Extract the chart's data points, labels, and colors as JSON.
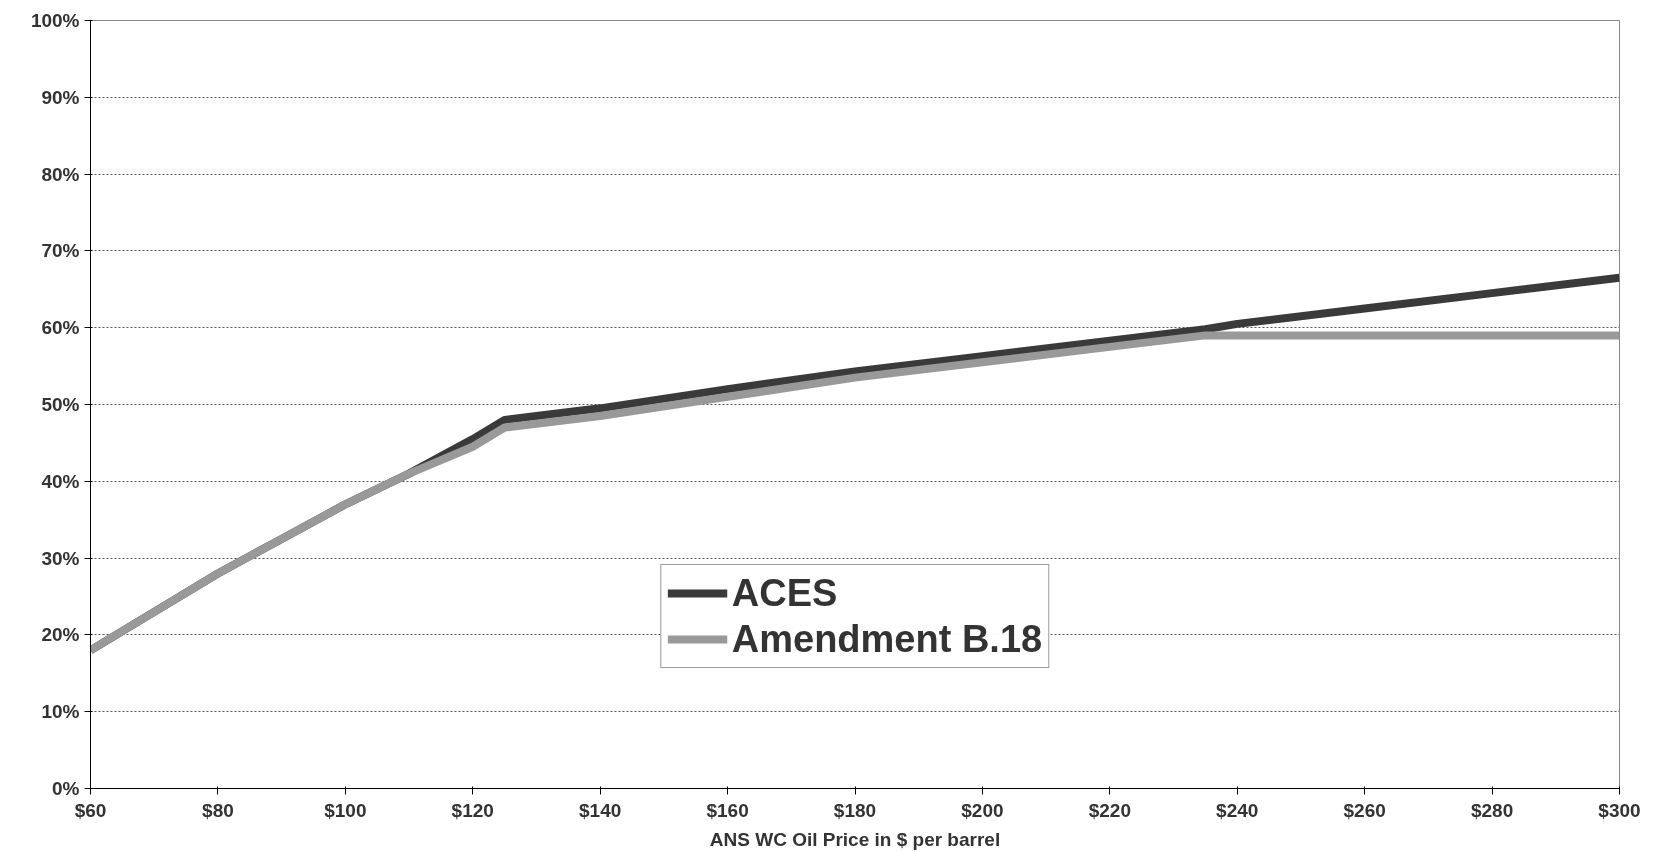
{
  "chart_data": {
    "type": "line",
    "xlabel": "ANS WC Oil Price in $ per barrel",
    "x": [
      60,
      70,
      80,
      90,
      100,
      110,
      120,
      125,
      130,
      140,
      160,
      180,
      200,
      220,
      235,
      240,
      260,
      280,
      300
    ],
    "series": [
      {
        "name": "ACES",
        "color": "#3a3a3a",
        "values": [
          18,
          23,
          28,
          32.5,
          37,
          41,
          45.5,
          48,
          48.5,
          49.5,
          52,
          54.3,
          56.3,
          58.3,
          59.8,
          60.5,
          62.5,
          64.5,
          66.5
        ]
      },
      {
        "name": "Amendment B.18",
        "color": "#999999",
        "values": [
          18,
          23,
          28,
          32.5,
          37,
          41,
          44.5,
          47,
          47.5,
          48.5,
          51,
          53.5,
          55.5,
          57.5,
          59,
          59,
          59,
          59,
          59
        ]
      }
    ],
    "xlim": [
      60,
      300
    ],
    "ylim": [
      0,
      100
    ],
    "xticks": [
      {
        "value": 60,
        "label": "$60"
      },
      {
        "value": 80,
        "label": "$80"
      },
      {
        "value": 100,
        "label": "$100"
      },
      {
        "value": 120,
        "label": "$120"
      },
      {
        "value": 140,
        "label": "$140"
      },
      {
        "value": 160,
        "label": "$160"
      },
      {
        "value": 180,
        "label": "$180"
      },
      {
        "value": 200,
        "label": "$200"
      },
      {
        "value": 220,
        "label": "$220"
      },
      {
        "value": 240,
        "label": "$240"
      },
      {
        "value": 260,
        "label": "$260"
      },
      {
        "value": 280,
        "label": "$280"
      },
      {
        "value": 300,
        "label": "$300"
      }
    ],
    "yticks": [
      {
        "value": 0,
        "label": "0%"
      },
      {
        "value": 10,
        "label": "10%"
      },
      {
        "value": 20,
        "label": "20%"
      },
      {
        "value": 30,
        "label": "30%"
      },
      {
        "value": 40,
        "label": "40%"
      },
      {
        "value": 50,
        "label": "50%"
      },
      {
        "value": 60,
        "label": "60%"
      },
      {
        "value": 70,
        "label": "70%"
      },
      {
        "value": 80,
        "label": "80%"
      },
      {
        "value": 90,
        "label": "90%"
      },
      {
        "value": 100,
        "label": "100%"
      }
    ],
    "grid": "y",
    "legend": "bottom",
    "line_style": "solid",
    "marker": "none"
  }
}
